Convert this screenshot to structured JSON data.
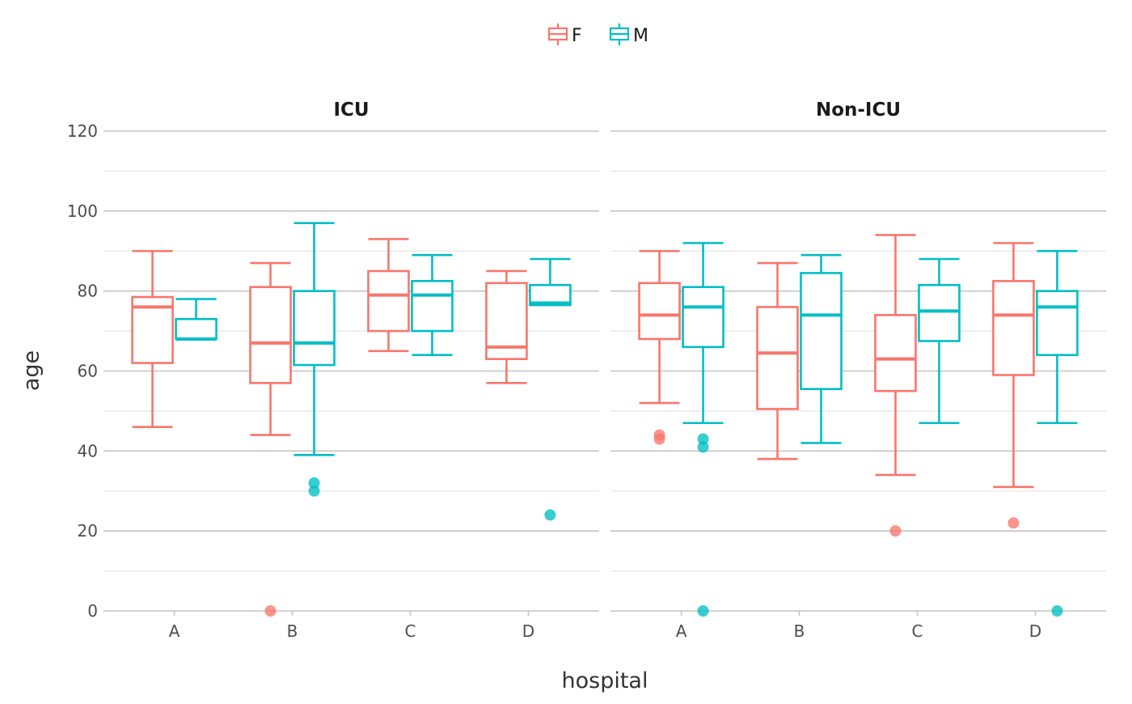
{
  "chart_data": {
    "type": "boxplot",
    "xlabel": "hospital",
    "ylabel": "age",
    "ylim": [
      0,
      120
    ],
    "y_ticks": [
      0,
      20,
      40,
      60,
      80,
      100,
      120
    ],
    "grid": true,
    "legend_position": "top",
    "categories": [
      "A",
      "B",
      "C",
      "D"
    ],
    "groups": [
      {
        "name": "F",
        "color": "#F8766D"
      },
      {
        "name": "M",
        "color": "#00BFC4"
      }
    ],
    "facets": [
      {
        "label": "ICU",
        "boxes": [
          {
            "category": "A",
            "group": "F",
            "whisker_low": 46,
            "q1": 62,
            "median": 76,
            "q3": 78.5,
            "whisker_high": 90,
            "outliers": []
          },
          {
            "category": "A",
            "group": "M",
            "whisker_low": 68,
            "q1": 68,
            "median": 68,
            "q3": 73,
            "whisker_high": 78,
            "outliers": []
          },
          {
            "category": "B",
            "group": "F",
            "whisker_low": 44,
            "q1": 57,
            "median": 67,
            "q3": 81,
            "whisker_high": 87,
            "outliers": [
              0
            ]
          },
          {
            "category": "B",
            "group": "M",
            "whisker_low": 39,
            "q1": 61.5,
            "median": 67,
            "q3": 80,
            "whisker_high": 97,
            "outliers": [
              30,
              32
            ]
          },
          {
            "category": "C",
            "group": "F",
            "whisker_low": 65,
            "q1": 70,
            "median": 79,
            "q3": 85,
            "whisker_high": 93,
            "outliers": []
          },
          {
            "category": "C",
            "group": "M",
            "whisker_low": 64,
            "q1": 70,
            "median": 79,
            "q3": 82.5,
            "whisker_high": 89,
            "outliers": []
          },
          {
            "category": "D",
            "group": "F",
            "whisker_low": 57,
            "q1": 63,
            "median": 66,
            "q3": 82,
            "whisker_high": 85,
            "outliers": []
          },
          {
            "category": "D",
            "group": "M",
            "whisker_low": 76.5,
            "q1": 76.5,
            "median": 77,
            "q3": 81.5,
            "whisker_high": 88,
            "outliers": [
              24
            ]
          }
        ]
      },
      {
        "label": "Non-ICU",
        "boxes": [
          {
            "category": "A",
            "group": "F",
            "whisker_low": 52,
            "q1": 68,
            "median": 74,
            "q3": 82,
            "whisker_high": 90,
            "outliers": [
              43,
              44
            ]
          },
          {
            "category": "A",
            "group": "M",
            "whisker_low": 47,
            "q1": 66,
            "median": 76,
            "q3": 81,
            "whisker_high": 92,
            "outliers": [
              0,
              41,
              43
            ]
          },
          {
            "category": "B",
            "group": "F",
            "whisker_low": 38,
            "q1": 50.5,
            "median": 64.5,
            "q3": 76,
            "whisker_high": 87,
            "outliers": []
          },
          {
            "category": "B",
            "group": "M",
            "whisker_low": 42,
            "q1": 55.5,
            "median": 74,
            "q3": 84.5,
            "whisker_high": 89,
            "outliers": []
          },
          {
            "category": "C",
            "group": "F",
            "whisker_low": 34,
            "q1": 55,
            "median": 63,
            "q3": 74,
            "whisker_high": 94,
            "outliers": [
              20
            ]
          },
          {
            "category": "C",
            "group": "M",
            "whisker_low": 47,
            "q1": 67.5,
            "median": 75,
            "q3": 81.5,
            "whisker_high": 88,
            "outliers": []
          },
          {
            "category": "D",
            "group": "F",
            "whisker_low": 31,
            "q1": 59,
            "median": 74,
            "q3": 82.5,
            "whisker_high": 92,
            "outliers": [
              22
            ]
          },
          {
            "category": "D",
            "group": "M",
            "whisker_low": 47,
            "q1": 64,
            "median": 76,
            "q3": 80,
            "whisker_high": 90,
            "outliers": [
              0
            ]
          }
        ]
      }
    ]
  }
}
